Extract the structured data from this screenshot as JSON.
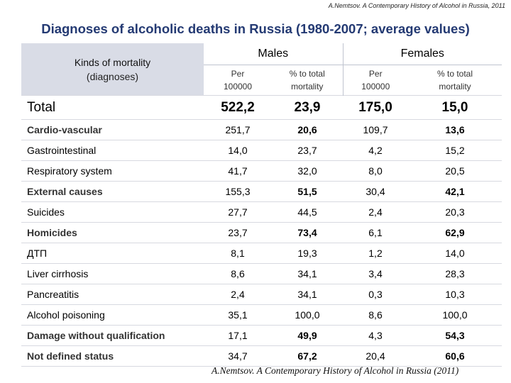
{
  "top_credit": "A.Nemtsov. A Contemporary  History of  Alcohol in Russia, 2011",
  "title": "Diagnoses of alcoholic deaths in Russia (1980-2007; average values)",
  "header": {
    "kinds_line1": "Kinds  of  mortality",
    "kinds_line2": "(diagnoses)",
    "males": "Males",
    "females": "Females",
    "per_line1": "Per",
    "per_line2": "100000",
    "pct_line1": "% to total",
    "pct_line2": "mortality"
  },
  "rows": [
    {
      "label": "Total",
      "m_per": "522,2",
      "m_pct": "23,9",
      "f_per": "175,0",
      "f_pct": "15,0"
    },
    {
      "label": "Cardio-vascular",
      "m_per": "251,7",
      "m_pct": "20,6",
      "f_per": "109,7",
      "f_pct": "13,6"
    },
    {
      "label": "Gastrointestinal",
      "m_per": "14,0",
      "m_pct": "23,7",
      "f_per": "4,2",
      "f_pct": "15,2"
    },
    {
      "label": "Respiratory system",
      "m_per": "41,7",
      "m_pct": "32,0",
      "f_per": "8,0",
      "f_pct": "20,5"
    },
    {
      "label": "External causes",
      "m_per": "155,3",
      "m_pct": "51,5",
      "f_per": "30,4",
      "f_pct": "42,1"
    },
    {
      "label": "Suicides",
      "m_per": "27,7",
      "m_pct": "44,5",
      "f_per": "2,4",
      "f_pct": "20,3"
    },
    {
      "label": "Homicides",
      "m_per": "23,7",
      "m_pct": "73,4",
      "f_per": "6,1",
      "f_pct": "62,9"
    },
    {
      "label": "ДТП",
      "m_per": "8,1",
      "m_pct": "19,3",
      "f_per": "1,2",
      "f_pct": "14,0"
    },
    {
      "label": "Liver cirrhosis",
      "m_per": "8,6",
      "m_pct": "34,1",
      "f_per": "3,4",
      "f_pct": "28,3"
    },
    {
      "label": "Pancreatitis",
      "m_per": "2,4",
      "m_pct": "34,1",
      "f_per": "0,3",
      "f_pct": "10,3"
    },
    {
      "label": "Alcohol poisoning",
      "m_per": "35,1",
      "m_pct": "100,0",
      "f_per": "8,6",
      "f_pct": "100,0"
    },
    {
      "label": "Damage without qualification",
      "m_per": "17,1",
      "m_pct": "49,9",
      "f_per": "4,3",
      "f_pct": "54,3"
    },
    {
      "label": "Not defined status",
      "m_per": "34,7",
      "m_pct": "67,2",
      "f_per": "20,4",
      "f_pct": "60,6"
    }
  ],
  "bottom_credit": "A.Nemtsov. A Contemporary  History of Alcohol in Russia (2011)"
}
